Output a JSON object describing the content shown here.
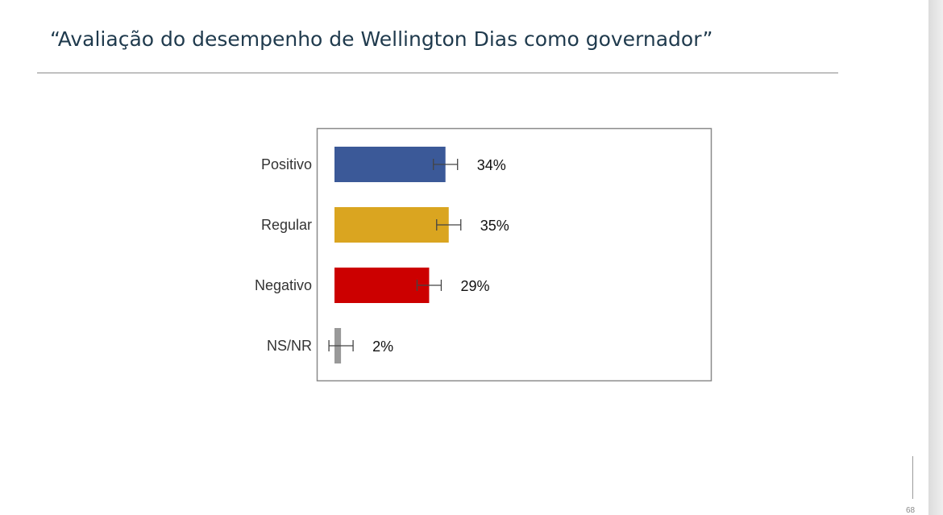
{
  "header": {
    "title": "“Avaliação do desempenho de Wellington Dias como governador”"
  },
  "chart_data": {
    "type": "bar",
    "orientation": "horizontal",
    "categories": [
      "Positivo",
      "Regular",
      "Negativo",
      "NS/NR"
    ],
    "values": [
      34,
      35,
      29,
      2
    ],
    "value_labels": [
      "34%",
      "35%",
      "29%",
      "2%"
    ],
    "error_bars": true,
    "colors": [
      "#3b5998",
      "#daa520",
      "#cc0000",
      "#999999"
    ],
    "grid": false,
    "legend": "none"
  },
  "footer": {
    "page_number": "68"
  }
}
